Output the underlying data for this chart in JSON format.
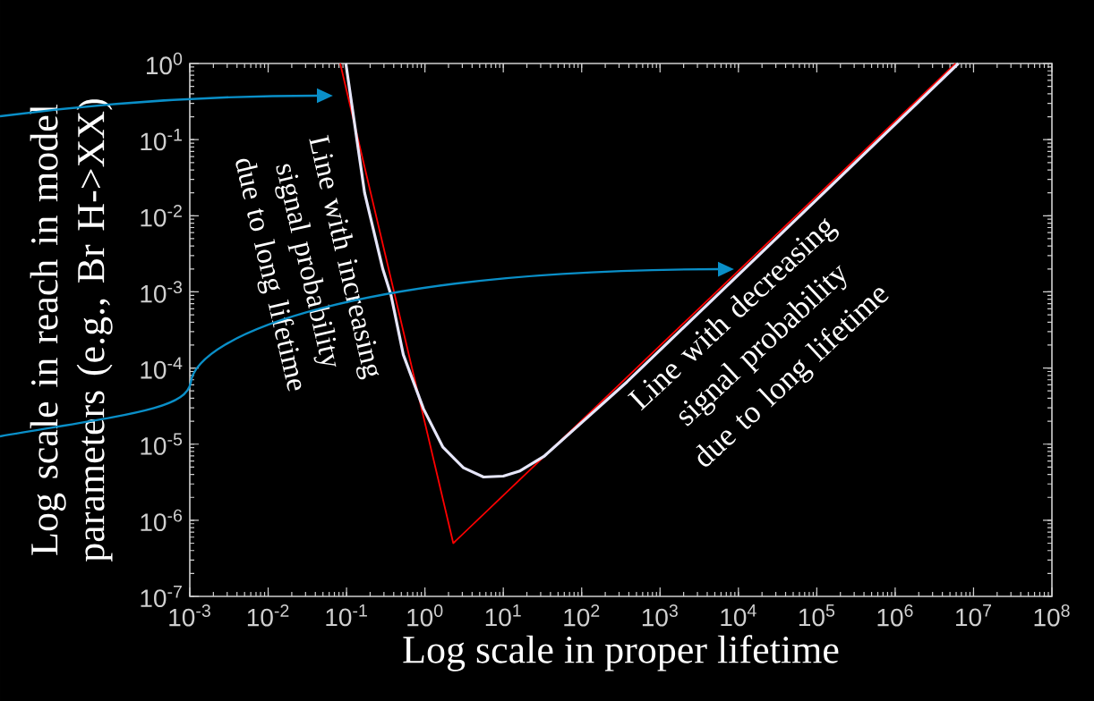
{
  "chart_data": {
    "type": "line",
    "xlabel": "Log scale in proper lifetime",
    "ylabel": "Log scale in reach in model parameters (e.g., Br H->XX)",
    "annotations": [
      "Line with increasing signal probability due to long lifetime",
      "Line with decreasing signal probability due to long lifetime"
    ],
    "log": "xy",
    "xlim": [
      0.001,
      100000000
    ],
    "ylim": [
      1e-07,
      1
    ],
    "xticks": [
      {
        "value": 0.001,
        "label": "10$^{-3}$"
      },
      {
        "value": 0.01,
        "label": "10$^{-2}$"
      },
      {
        "value": 0.1,
        "label": "10$^{-1}$"
      },
      {
        "value": 1,
        "label": "10$^{0}$"
      },
      {
        "value": 10,
        "label": "10$^{1}$"
      },
      {
        "value": 100,
        "label": "10$^{2}$"
      },
      {
        "value": 1000,
        "label": "10$^{3}$"
      },
      {
        "value": 10000,
        "label": "10$^{4}$"
      },
      {
        "value": 100000,
        "label": "10$^{5}$"
      },
      {
        "value": 1000000,
        "label": "10$^{6}$"
      },
      {
        "value": 10000000,
        "label": "10$^{7}$"
      },
      {
        "value": 100000000,
        "label": "10$^{8}$"
      }
    ],
    "yticks": [
      {
        "value": 1e-07,
        "label": "10$^{-7}$"
      },
      {
        "value": 1e-06,
        "label": "10$^{-6}$"
      },
      {
        "value": 1e-05,
        "label": "10$^{-5}$"
      },
      {
        "value": 0.0001,
        "label": "10$^{-4}$"
      },
      {
        "value": 0.001,
        "label": "10$^{-3}$"
      },
      {
        "value": 0.01,
        "label": "10$^{-2}$"
      },
      {
        "value": 0.1,
        "label": "10$^{-1}$"
      },
      {
        "value": 1,
        "label": "10$^{0}$"
      }
    ],
    "series": [
      {
        "color": "#ff0000",
        "x": [
          0.083,
          2.3,
          5900000
        ],
        "values": [
          1,
          5e-07,
          1
        ]
      },
      {
        "color": "#e6e6fa",
        "x": [
          0.098,
          0.17,
          0.29,
          0.37,
          0.53,
          0.96,
          1.7,
          3.1,
          5.6,
          10,
          16,
          33,
          380,
          6400000
        ],
        "values": [
          1,
          0.02,
          0.002,
          0.0009,
          0.00015,
          2.9e-05,
          9.1e-06,
          4.9e-06,
          3.7e-06,
          3.8e-06,
          4.4e-06,
          6.9e-06,
          6.6e-05,
          1
        ]
      }
    ]
  }
}
